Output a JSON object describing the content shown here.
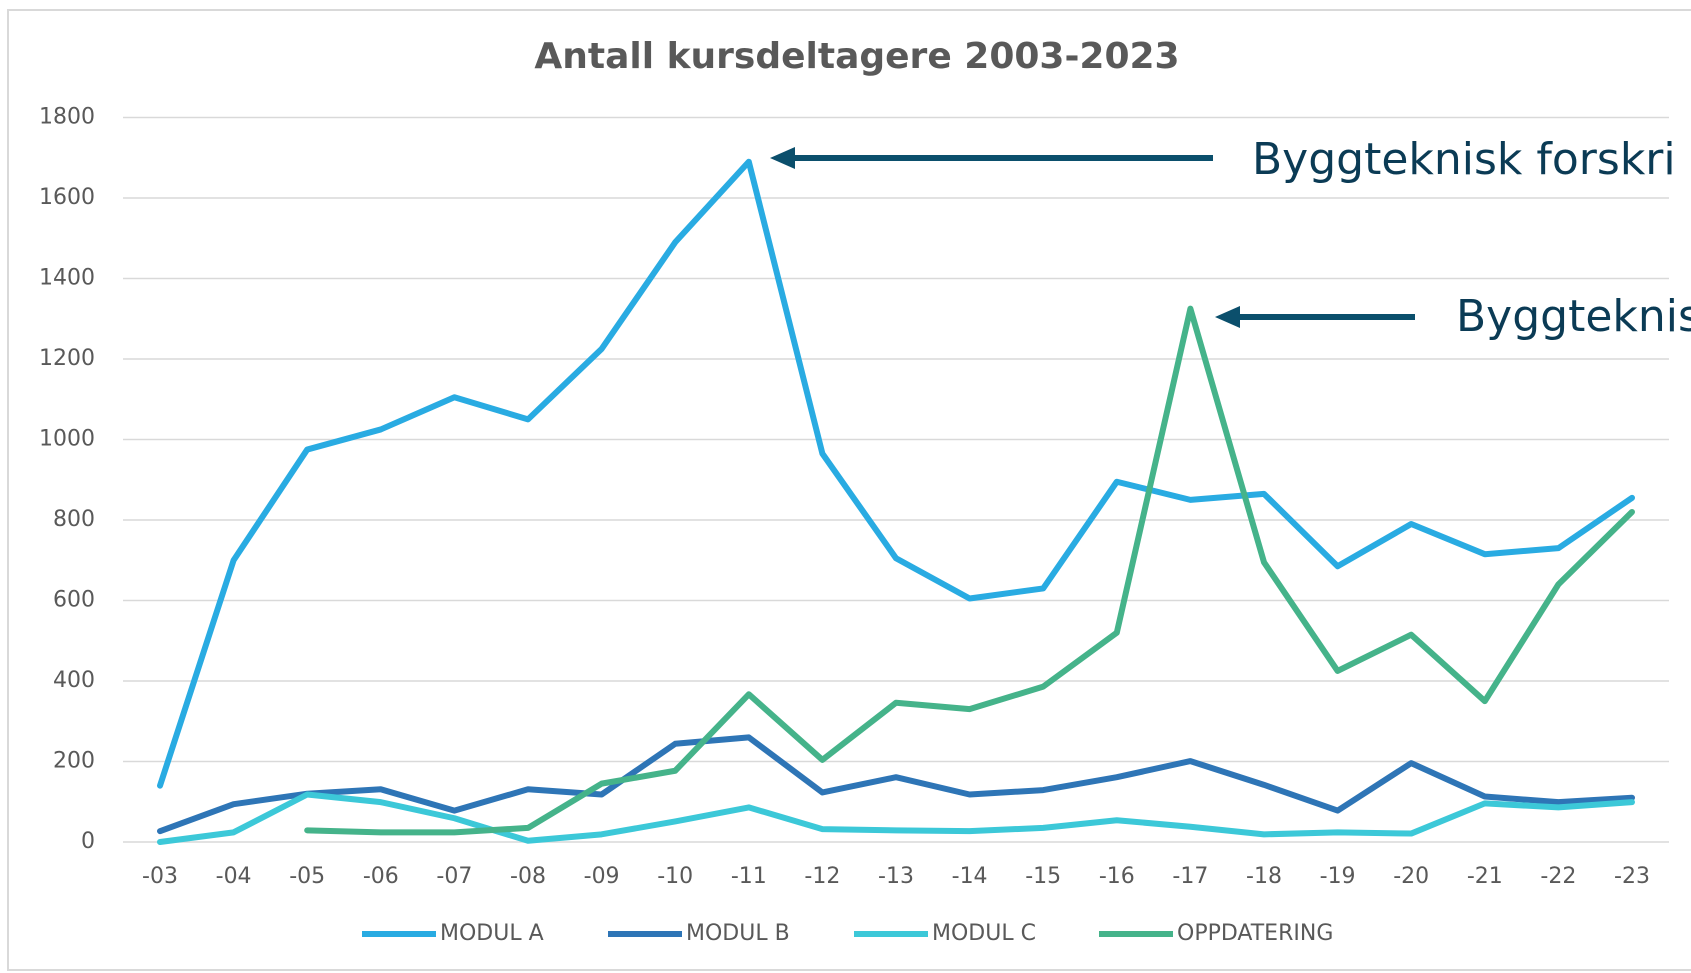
{
  "chart_data": {
    "type": "line",
    "title": "Antall kursdeltagere 2003-2023",
    "categories": [
      "-03",
      "-04",
      "-05",
      "-06",
      "-07",
      "-08",
      "-09",
      "-10",
      "-11",
      "-12",
      "-13",
      "-14",
      "-15",
      "-16",
      "-17",
      "-18",
      "-19",
      "-20",
      "-21",
      "-22",
      "-23"
    ],
    "series": [
      {
        "name": "MODUL A",
        "color": "#29abe2",
        "values": [
          140,
          700,
          975,
          1025,
          1105,
          1050,
          1225,
          1490,
          1690,
          965,
          705,
          605,
          630,
          895,
          850,
          865,
          685,
          790,
          715,
          730,
          855
        ]
      },
      {
        "name": "MODUL B",
        "color": "#2e75b6",
        "values": [
          27,
          94,
          120,
          131,
          78,
          131,
          118,
          244,
          260,
          123,
          161,
          118,
          129,
          161,
          201,
          142,
          78,
          196,
          113,
          99,
          110
        ]
      },
      {
        "name": "MODUL C",
        "color": "#3cc8d8",
        "values": [
          0,
          24,
          118,
          99,
          59,
          3,
          19,
          51,
          86,
          32,
          29,
          27,
          35,
          54,
          38,
          19,
          24,
          21,
          96,
          86,
          99
        ]
      },
      {
        "name": "OPPDATERING",
        "color": "#45b38a",
        "values": [
          null,
          null,
          29,
          24,
          24,
          35,
          145,
          177,
          367,
          204,
          346,
          330,
          386,
          520,
          1325,
          695,
          425,
          515,
          350,
          640,
          820
        ]
      }
    ],
    "ylim": [
      0,
      1800
    ],
    "yticks": [
      0,
      200,
      400,
      600,
      800,
      1000,
      1200,
      1400,
      1600,
      1800
    ],
    "grid": true,
    "legend": "bottom",
    "annotations": [
      "Byggteknisk forskri",
      "Byggteknis"
    ]
  }
}
